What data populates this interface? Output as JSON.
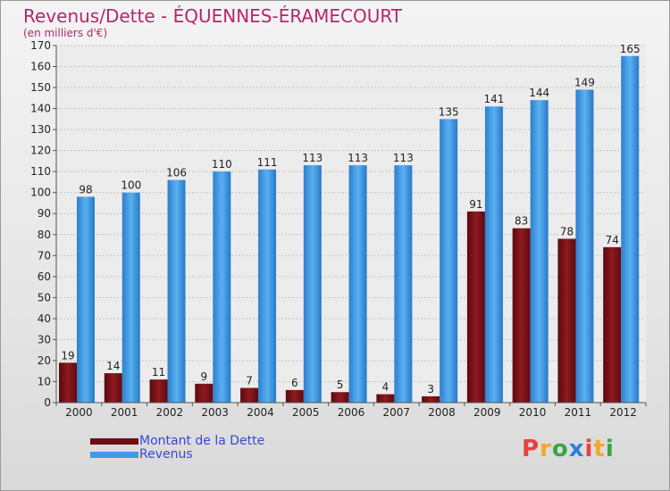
{
  "chart_data": {
    "type": "bar",
    "title": "Revenus/Dette - ÉQUENNES-ÉRAMECOURT",
    "subtitle": "(en milliers d'€)",
    "categories": [
      "2000",
      "2001",
      "2002",
      "2003",
      "2004",
      "2005",
      "2006",
      "2007",
      "2008",
      "2009",
      "2010",
      "2011",
      "2012"
    ],
    "series": [
      {
        "name": "Montant de la Dette",
        "color": "#7b0f14",
        "values": [
          19,
          14,
          11,
          9,
          7,
          6,
          5,
          4,
          3,
          91,
          83,
          78,
          74
        ]
      },
      {
        "name": "Revenus",
        "color": "#3e9be8",
        "values": [
          98,
          100,
          106,
          110,
          111,
          113,
          113,
          113,
          135,
          141,
          144,
          149,
          165
        ]
      }
    ],
    "ylim": [
      0,
      170
    ],
    "yticks": [
      0,
      10,
      20,
      30,
      40,
      50,
      60,
      70,
      80,
      90,
      100,
      110,
      120,
      130,
      140,
      150,
      160,
      170
    ],
    "grid": true,
    "legend_position": "bottom-left"
  },
  "logo": {
    "letters": [
      "P",
      "r",
      "o",
      "x",
      "i",
      "t",
      "i"
    ],
    "colors": [
      "#e8413c",
      "#f3a72b",
      "#3aa545",
      "#2f7fd8",
      "#e8413c",
      "#f3a72b",
      "#3aa545"
    ]
  }
}
